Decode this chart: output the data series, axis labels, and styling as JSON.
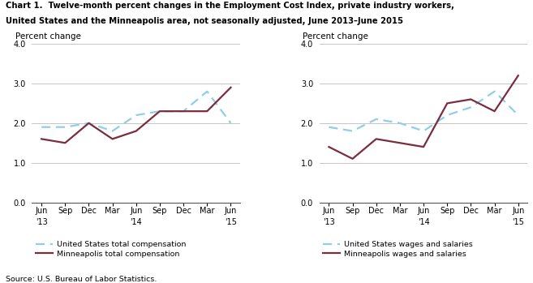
{
  "title_line1": "Chart 1.  Twelve-month percent changes in the Employment Cost Index, private industry workers,",
  "title_line2": "United States and the Minneapolis area, not seasonally adjusted, June 2013–June 2015",
  "source": "Source: U.S. Bureau of Labor Statistics.",
  "ylabel": "Percent change",
  "xlabels_top": [
    "Jun",
    "Sep",
    "Dec",
    "Mar",
    "Jun",
    "Sep",
    "Dec",
    "Mar",
    "Jun"
  ],
  "xlabels_year": {
    "0": "'13",
    "4": "'14",
    "8": "'15"
  },
  "ylim": [
    0.0,
    4.0
  ],
  "yticks": [
    0.0,
    1.0,
    2.0,
    3.0,
    4.0
  ],
  "left_us": [
    1.9,
    1.9,
    2.0,
    1.8,
    2.2,
    2.3,
    2.3,
    2.8,
    2.0
  ],
  "left_minneapolis": [
    1.6,
    1.5,
    2.0,
    1.6,
    1.8,
    2.3,
    2.3,
    2.3,
    2.9
  ],
  "left_us_label": "United States total compensation",
  "left_mpls_label": "Minneapolis total compensation",
  "right_us": [
    1.9,
    1.8,
    2.1,
    2.0,
    1.8,
    2.2,
    2.4,
    2.8,
    2.2
  ],
  "right_minneapolis": [
    1.4,
    1.1,
    1.6,
    1.5,
    1.4,
    2.5,
    2.6,
    2.3,
    3.2
  ],
  "right_us_label": "United States wages and salaries",
  "right_mpls_label": "Minneapolis wages and salaries",
  "us_color": "#90CEE8",
  "mpls_color": "#7B2D3E",
  "background_color": "#ffffff",
  "grid_color": "#bbbbbb"
}
